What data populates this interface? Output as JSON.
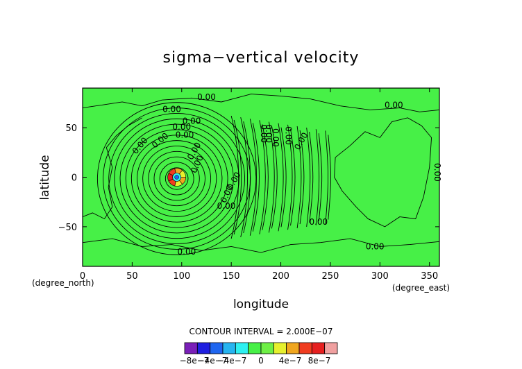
{
  "chart_data": {
    "type": "heatmap",
    "title": "sigma−vertical velocity",
    "xlabel": "longitude",
    "ylabel": "latitude",
    "x_unit": "(degree_east)",
    "y_unit": "(degree_north)",
    "xlim": [
      0,
      360
    ],
    "ylim": [
      -90,
      90
    ],
    "xticks": [
      0,
      50,
      100,
      150,
      200,
      250,
      300,
      350
    ],
    "yticks": [
      -50,
      0,
      50
    ],
    "contour_interval_text": "CONTOUR INTERVAL = 2.000E−07",
    "contour_label": "0.00",
    "colorbar": {
      "colors": [
        "#7a1fb8",
        "#1f1fe0",
        "#1f66f0",
        "#26b4f0",
        "#2ef0f0",
        "#47f047",
        "#6ef045",
        "#e6f02e",
        "#f0a61f",
        "#f03c1f",
        "#e61f1f",
        "#f0a0a0"
      ],
      "labels": [
        "−8e−7",
        "−4e−7",
        "−4e−7",
        "0",
        "4e−7",
        "8e−7"
      ]
    },
    "background_color": "#47f047",
    "disturbance_center": {
      "lon": 95,
      "lat": 0
    }
  }
}
